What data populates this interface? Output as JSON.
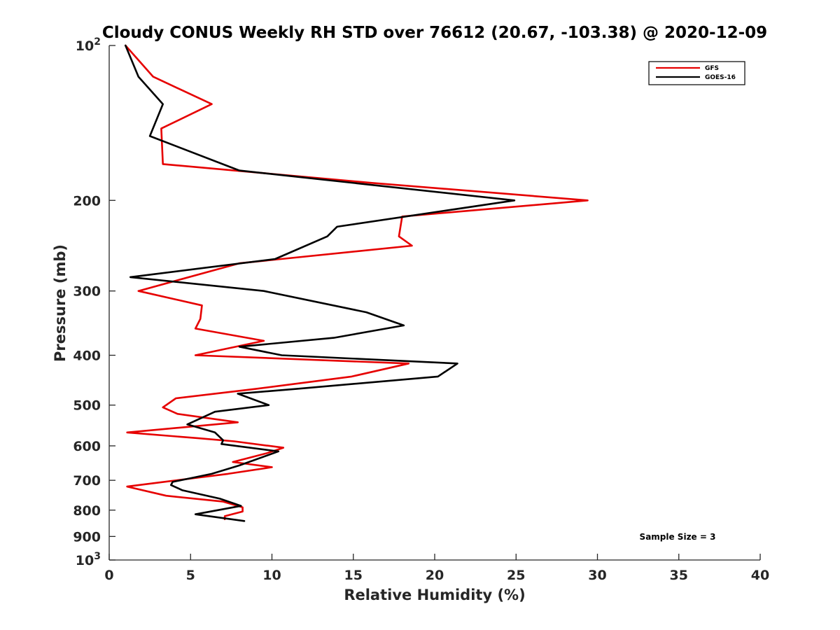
{
  "chart_data": {
    "type": "line",
    "title": "Cloudy CONUS Weekly RH STD over 76612 (20.67, -103.38) @ 2020-12-09",
    "xlabel": "Relative Humidity (%)",
    "ylabel": "Pressure (mb)",
    "xlim": [
      0,
      40
    ],
    "ylim": [
      100,
      1000
    ],
    "yscale": "log",
    "y_reversed": true,
    "grid": false,
    "xticks": [
      0,
      5,
      10,
      15,
      20,
      25,
      30,
      35,
      40
    ],
    "xtick_labels": [
      "0",
      "5",
      "10",
      "15",
      "20",
      "25",
      "30",
      "35",
      "40"
    ],
    "yticks": [
      100,
      200,
      300,
      400,
      500,
      600,
      700,
      800,
      900,
      1000
    ],
    "ytick_labels": [
      {
        "base": "10",
        "exp": "2"
      },
      {
        "base": "200",
        "exp": ""
      },
      {
        "base": "300",
        "exp": ""
      },
      {
        "base": "400",
        "exp": ""
      },
      {
        "base": "500",
        "exp": ""
      },
      {
        "base": "600",
        "exp": ""
      },
      {
        "base": "700",
        "exp": ""
      },
      {
        "base": "800",
        "exp": ""
      },
      {
        "base": "900",
        "exp": ""
      },
      {
        "base": "10",
        "exp": "3"
      }
    ],
    "legend_position": "top-right",
    "annotation": "Sample Size = 3",
    "series": [
      {
        "name": "GFS",
        "color": "#e60000",
        "points": [
          [
            1.0,
            100
          ],
          [
            2.7,
            115
          ],
          [
            6.3,
            130
          ],
          [
            3.2,
            145
          ],
          [
            3.3,
            170
          ],
          [
            16.2,
            185
          ],
          [
            29.4,
            200
          ],
          [
            18.0,
            215
          ],
          [
            17.8,
            235
          ],
          [
            18.6,
            245
          ],
          [
            8.0,
            265
          ],
          [
            1.8,
            300
          ],
          [
            5.7,
            320
          ],
          [
            5.6,
            340
          ],
          [
            5.3,
            355
          ],
          [
            9.5,
            375
          ],
          [
            5.3,
            400
          ],
          [
            18.4,
            415
          ],
          [
            14.9,
            440
          ],
          [
            9.0,
            465
          ],
          [
            4.1,
            485
          ],
          [
            3.3,
            505
          ],
          [
            4.2,
            520
          ],
          [
            7.9,
            540
          ],
          [
            1.1,
            565
          ],
          [
            5.5,
            580
          ],
          [
            7.7,
            588
          ],
          [
            10.7,
            605
          ],
          [
            9.7,
            620
          ],
          [
            7.6,
            645
          ],
          [
            10.0,
            660
          ],
          [
            7.3,
            680
          ],
          [
            1.1,
            720
          ],
          [
            3.5,
            750
          ],
          [
            7.0,
            770
          ],
          [
            8.2,
            790
          ],
          [
            8.2,
            805
          ],
          [
            7.1,
            822
          ],
          [
            7.1,
            833
          ]
        ]
      },
      {
        "name": "GOES-16",
        "color": "#000000",
        "points": [
          [
            1.0,
            100
          ],
          [
            1.8,
            115
          ],
          [
            3.3,
            130
          ],
          [
            2.5,
            150
          ],
          [
            8.0,
            175
          ],
          [
            24.9,
            200
          ],
          [
            14.0,
            225
          ],
          [
            13.4,
            235
          ],
          [
            10.2,
            260
          ],
          [
            1.3,
            282
          ],
          [
            9.5,
            300
          ],
          [
            15.8,
            330
          ],
          [
            18.1,
            350
          ],
          [
            13.8,
            370
          ],
          [
            8.0,
            385
          ],
          [
            10.6,
            400
          ],
          [
            21.4,
            415
          ],
          [
            20.2,
            440
          ],
          [
            11.5,
            465
          ],
          [
            7.9,
            475
          ],
          [
            9.8,
            500
          ],
          [
            6.5,
            515
          ],
          [
            4.8,
            545
          ],
          [
            6.5,
            565
          ],
          [
            7.0,
            585
          ],
          [
            6.9,
            595
          ],
          [
            10.4,
            615
          ],
          [
            8.0,
            655
          ],
          [
            6.3,
            680
          ],
          [
            3.9,
            705
          ],
          [
            3.8,
            715
          ],
          [
            4.5,
            732
          ],
          [
            6.8,
            760
          ],
          [
            8.1,
            785
          ],
          [
            5.3,
            815
          ],
          [
            8.3,
            840
          ]
        ]
      }
    ]
  }
}
